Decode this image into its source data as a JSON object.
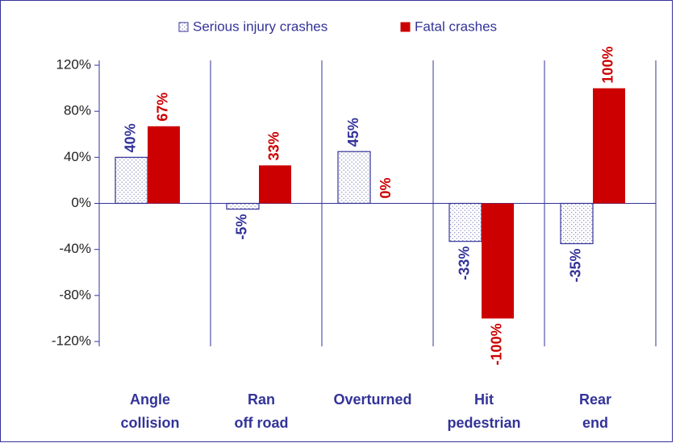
{
  "chart_data": {
    "type": "bar",
    "categories": [
      [
        "Angle",
        "collision"
      ],
      [
        "Ran",
        "off road"
      ],
      [
        "Overturned"
      ],
      [
        "Hit",
        "pedestrian"
      ],
      [
        "Rear",
        "end"
      ]
    ],
    "series": [
      {
        "name": "Serious injury crashes",
        "color": "#333399",
        "pattern": "dots",
        "values": [
          40,
          -5,
          45,
          -33,
          -35
        ],
        "value_labels": [
          "40%",
          "-5%",
          "45%",
          "-33%",
          "-35%"
        ]
      },
      {
        "name": "Fatal crashes",
        "color": "#cc0000",
        "values": [
          67,
          33,
          0,
          -100,
          100
        ],
        "value_labels": [
          "67%",
          "33%",
          "0%",
          "-100%",
          "100%"
        ]
      }
    ],
    "ylim": [
      -120,
      120
    ],
    "yticks": [
      {
        "value": -120,
        "label": "-120%"
      },
      {
        "value": -80,
        "label": "-80%"
      },
      {
        "value": -40,
        "label": "-40%"
      },
      {
        "value": 0,
        "label": "0%"
      },
      {
        "value": 40,
        "label": "40%"
      },
      {
        "value": 80,
        "label": "80%"
      },
      {
        "value": 120,
        "label": "120%"
      }
    ],
    "legend": "top",
    "grid": false
  }
}
